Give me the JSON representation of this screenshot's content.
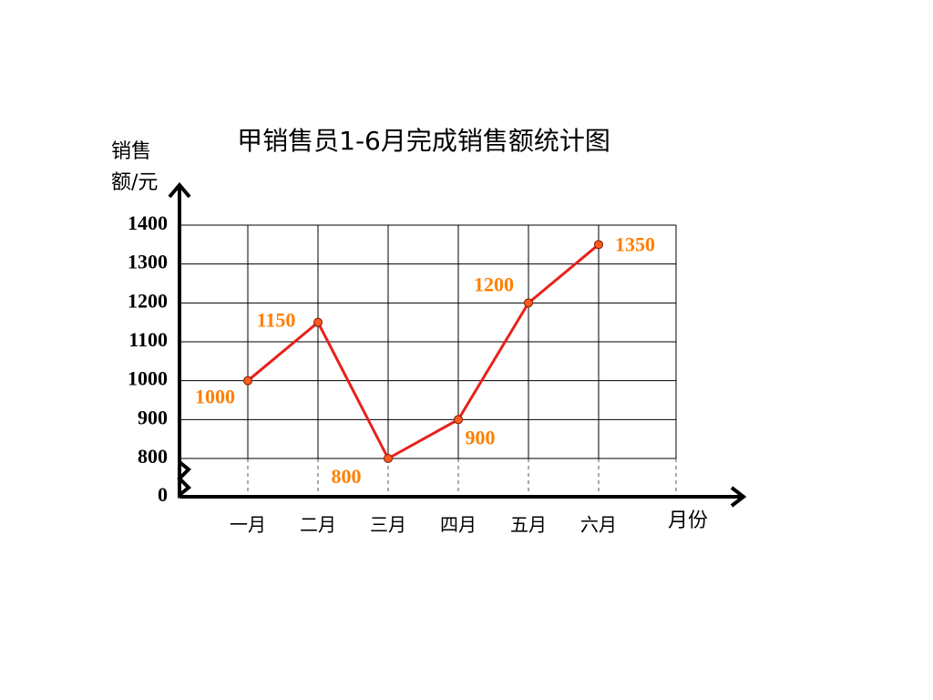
{
  "chart_data": {
    "type": "line",
    "title": "甲销售员1-6月完成销售额统计图",
    "y_label": "销售额/元",
    "x_label": "月份",
    "categories": [
      "一月",
      "二月",
      "三月",
      "四月",
      "五月",
      "六月"
    ],
    "values": [
      1000,
      1150,
      800,
      900,
      1200,
      1350
    ],
    "color": "#e8211c",
    "marker_color": "#ff5a1f",
    "label_color": "#ff7f00",
    "ylim": [
      0,
      1400
    ],
    "yticks": [
      0,
      800,
      900,
      1000,
      1100,
      1200,
      1300,
      1400
    ],
    "axis_break": true,
    "grid": true
  }
}
